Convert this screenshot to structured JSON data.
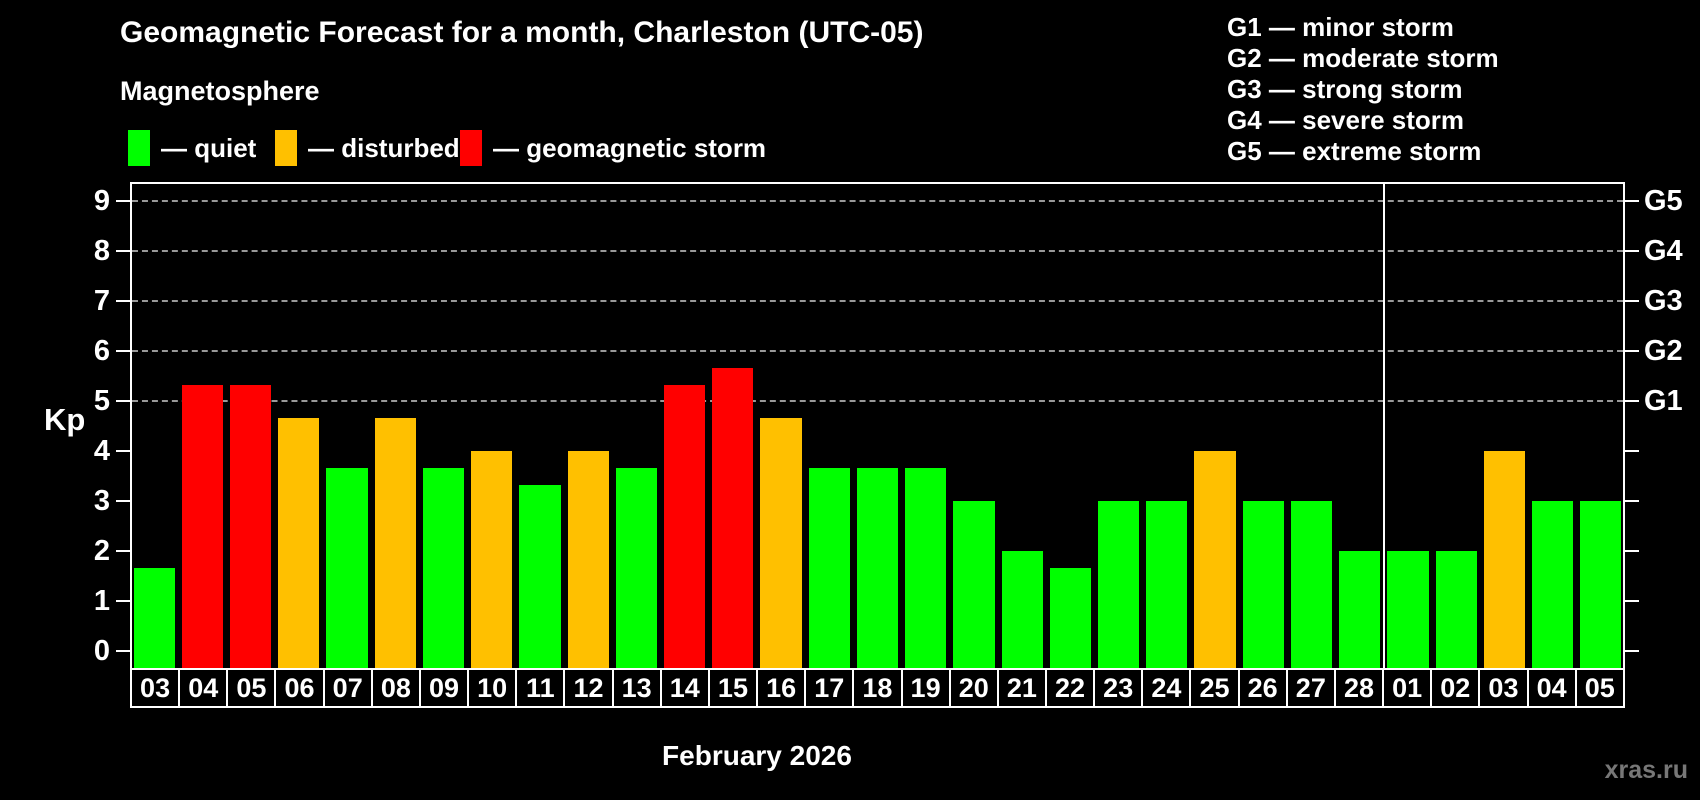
{
  "header": {
    "title": "Geomagnetic Forecast for a month, Charleston (UTC-05)"
  },
  "g_scale": {
    "items": [
      "G1 — minor storm",
      "G2 — moderate storm",
      "G3 — strong storm",
      "G4 — severe storm",
      "G5 — extreme storm"
    ]
  },
  "magnetosphere": {
    "title": "Magnetosphere",
    "items": [
      {
        "status": "quiet",
        "label": "— quiet"
      },
      {
        "status": "disturbed",
        "label": "— disturbed"
      },
      {
        "status": "storm",
        "label": "— geomagnetic storm"
      }
    ]
  },
  "colors": {
    "quiet": "#00ff00",
    "disturbed": "#ffc000",
    "storm": "#ff0000",
    "grid": "#999999",
    "axis": "#ffffff",
    "text": "#ffffff",
    "background": "#000000",
    "watermark": "#777777"
  },
  "chart_data": {
    "type": "bar",
    "title": "Geomagnetic Forecast for a month, Charleston (UTC-05)",
    "xlabel": "February 2026",
    "ylabel": "Kp",
    "ylim": [
      -0.45,
      9.4
    ],
    "yticks": [
      0,
      1,
      2,
      3,
      4,
      5,
      6,
      7,
      8,
      9
    ],
    "gridlines_at": [
      5,
      6,
      7,
      8,
      9
    ],
    "grid": "horizontal dashed lines at storm levels G1–G5 only",
    "legend_position": "top",
    "right_axis": [
      {
        "value": 5,
        "label": "G1"
      },
      {
        "value": 6,
        "label": "G2"
      },
      {
        "value": 7,
        "label": "G3"
      },
      {
        "value": 8,
        "label": "G4"
      },
      {
        "value": 9,
        "label": "G5"
      }
    ],
    "categories": [
      "03",
      "04",
      "05",
      "06",
      "07",
      "08",
      "09",
      "10",
      "11",
      "12",
      "13",
      "14",
      "15",
      "16",
      "17",
      "18",
      "19",
      "20",
      "21",
      "22",
      "23",
      "24",
      "25",
      "26",
      "27",
      "28",
      "01",
      "02",
      "03",
      "04",
      "05"
    ],
    "values": [
      1.67,
      5.33,
      5.33,
      4.67,
      3.67,
      4.67,
      3.67,
      4,
      3.33,
      4,
      3.67,
      5.33,
      5.67,
      4.67,
      3.67,
      3.67,
      3.67,
      3,
      2,
      1.67,
      3,
      3,
      4,
      3,
      3,
      2,
      2,
      2,
      4,
      3,
      3
    ],
    "statuses": [
      "quiet",
      "storm",
      "storm",
      "disturbed",
      "quiet",
      "disturbed",
      "quiet",
      "disturbed",
      "quiet",
      "disturbed",
      "quiet",
      "storm",
      "storm",
      "disturbed",
      "quiet",
      "quiet",
      "quiet",
      "quiet",
      "quiet",
      "quiet",
      "quiet",
      "quiet",
      "disturbed",
      "quiet",
      "quiet",
      "quiet",
      "quiet",
      "quiet",
      "disturbed",
      "quiet",
      "quiet"
    ],
    "month_divider_index": 26
  },
  "footer": {
    "watermark": "xras.ru"
  }
}
